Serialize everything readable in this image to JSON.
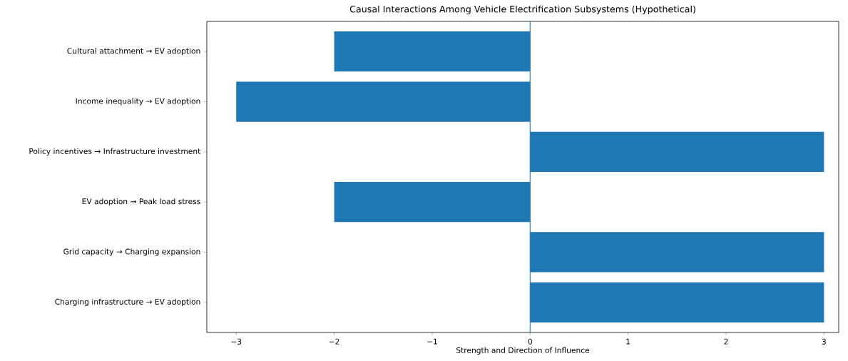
{
  "chart_data": {
    "type": "bar",
    "orientation": "horizontal",
    "title": "Causal Interactions Among Vehicle Electrification Subsystems (Hypothetical)",
    "xlabel": "Strength and Direction of Influence",
    "categories": [
      "Cultural attachment → EV adoption",
      "Income inequality → EV adoption",
      "Policy incentives → Infrastructure investment",
      "EV adoption → Peak load stress",
      "Grid capacity → Charging expansion",
      "Charging infrastructure → EV adoption"
    ],
    "values": [
      -2,
      -3,
      3,
      -2,
      3,
      3
    ],
    "color": "#1f77b4",
    "xlim": [
      -3.3,
      3.15
    ],
    "xticks": [
      {
        "value": -3,
        "label": "−3"
      },
      {
        "value": -2,
        "label": "−2"
      },
      {
        "value": -1,
        "label": "−1"
      },
      0,
      1,
      2,
      3
    ],
    "ref_lines": [
      {
        "axis": "x",
        "value": 0,
        "color": "#1f77b4"
      }
    ],
    "grid": false
  }
}
